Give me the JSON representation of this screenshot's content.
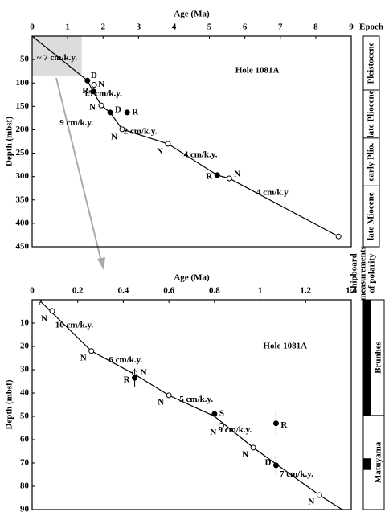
{
  "chart_data": [
    {
      "type": "line",
      "xlabel": "Age (Ma)",
      "ylabel": "Depth (mbsf)",
      "x_axis_position": "top",
      "y_inverted": true,
      "xlim": [
        0,
        9
      ],
      "ylim": [
        0,
        450
      ],
      "xticks": [
        0,
        1,
        2,
        3,
        4,
        5,
        6,
        7,
        8,
        9
      ],
      "yticks": [
        50,
        100,
        150,
        200,
        250,
        300,
        350,
        400,
        450
      ],
      "series": [
        {
          "color": "#000000",
          "x": [
            0,
            1.56,
            1.73,
            1.95,
            2.2,
            2.54,
            3.83,
            5.22,
            5.56,
            8.64
          ],
          "values": [
            0,
            95,
            120,
            148,
            163,
            199,
            230,
            297,
            304,
            428
          ]
        }
      ],
      "points": {
        "x": [
          1.56,
          1.75,
          1.73,
          1.95,
          2.2,
          2.68,
          2.54,
          3.83,
          5.22,
          5.56,
          8.64
        ],
        "y": [
          95,
          104,
          118,
          148,
          163,
          163,
          199,
          230,
          297,
          304,
          428
        ],
        "filled": [
          true,
          false,
          true,
          false,
          true,
          true,
          false,
          false,
          true,
          false,
          false
        ],
        "labels": [
          "D",
          "N",
          "R",
          "N",
          "D",
          "R",
          "N",
          "N",
          "R",
          "N",
          null
        ]
      },
      "annotations": [
        {
          "text": "~ 7 cm/k.y.",
          "x": 0.7,
          "y": 47
        },
        {
          "text": "15 cm/k.y.",
          "x": 2.0,
          "y": 124
        },
        {
          "text": "9 cm/k.y.",
          "x": 1.25,
          "y": 186
        },
        {
          "text": "2 cm/k.y.",
          "x": 3.05,
          "y": 204
        },
        {
          "text": "4 cm/k.y.",
          "x": 4.75,
          "y": 254
        },
        {
          "text": "4 cm/k.y.",
          "x": 6.8,
          "y": 335
        },
        {
          "text": "Hole 1081A",
          "x": 6.35,
          "y": 74
        }
      ],
      "highlight": {
        "x": [
          0,
          1.4
        ],
        "y": [
          0,
          86
        ],
        "color": "#dcdcdc"
      },
      "epoch_label": "Epoch",
      "epochs": [
        {
          "name": "Pleistocene",
          "top": 0,
          "bottom": 115
        },
        {
          "name": "late Pliocene",
          "top": 115,
          "bottom": 218
        },
        {
          "name": "early Plio.",
          "top": 218,
          "bottom": 320
        },
        {
          "name": "late Miocene",
          "top": 320,
          "bottom": 450
        }
      ]
    },
    {
      "type": "line",
      "xlabel": "Age (Ma)",
      "ylabel": "Depth (mbsf)",
      "x_axis_position": "top",
      "y_inverted": true,
      "xlim": [
        0,
        1.4
      ],
      "ylim": [
        0,
        90
      ],
      "xticks": [
        0,
        0.2,
        0.4,
        0.6,
        0.8,
        1,
        1.2,
        1.4
      ],
      "yticks": [
        10,
        20,
        30,
        40,
        50,
        60,
        70,
        80,
        90
      ],
      "series": [
        {
          "color": "#000000",
          "x": [
            0.04,
            0.26,
            0.45,
            0.6,
            0.8,
            0.97,
            1.26,
            1.36
          ],
          "values": [
            1,
            22,
            32,
            41,
            50,
            63.4,
            83.8,
            90
          ]
        }
      ],
      "points": {
        "x": [
          0.088,
          0.26,
          0.45,
          0.45,
          0.6,
          0.8,
          0.83,
          1.07,
          0.97,
          1.07,
          1.26
        ],
        "y": [
          4.8,
          22,
          31.4,
          33.5,
          41,
          49,
          54,
          53,
          63.4,
          71,
          83.8
        ],
        "filled": [
          false,
          false,
          false,
          true,
          false,
          true,
          false,
          true,
          false,
          true,
          false
        ],
        "labels": [
          "N",
          "N",
          "N",
          "R",
          "N",
          "S",
          "N",
          "R",
          "N",
          "D",
          "N"
        ],
        "errors": [
          null,
          null,
          null,
          4,
          null,
          null,
          null,
          5,
          null,
          4,
          null
        ]
      },
      "annotations": [
        {
          "text": "?",
          "x": 0.035,
          "y": 1.5
        },
        {
          "text": "10 cm/k.y.",
          "x": 0.185,
          "y": 11
        },
        {
          "text": "6 cm/k.y.",
          "x": 0.41,
          "y": 26
        },
        {
          "text": "5 cm/k.y.",
          "x": 0.72,
          "y": 43
        },
        {
          "text": "9 cm/k.y.",
          "x": 0.89,
          "y": 56
        },
        {
          "text": "7 cm/k.y.",
          "x": 1.16,
          "y": 75
        },
        {
          "text": "Hole 1081A",
          "x": 1.11,
          "y": 20
        }
      ],
      "column_title": [
        "Shipboard",
        "measurements",
        "of polarity"
      ],
      "normal_polarity": [
        [
          0,
          49.6
        ],
        [
          68,
          73
        ]
      ],
      "chrons": [
        {
          "name": "Brunhes",
          "top": 0,
          "bottom": 49.6
        },
        {
          "name": "Matuyama",
          "top": 49.6,
          "bottom": 90
        }
      ]
    }
  ]
}
